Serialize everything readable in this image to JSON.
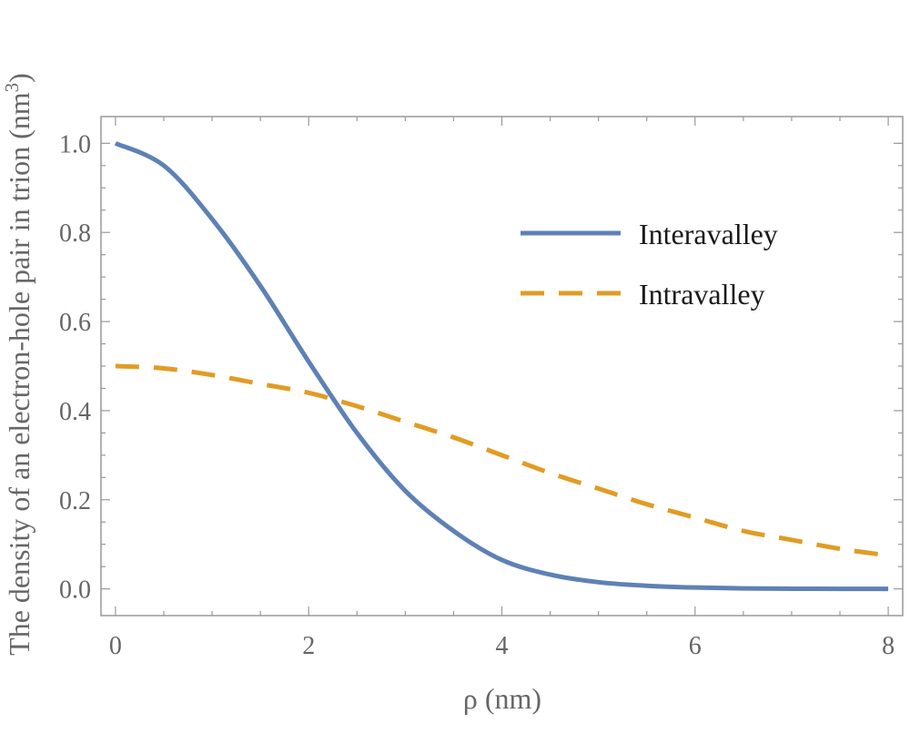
{
  "chart_data": {
    "type": "line",
    "title": "",
    "xlabel": "ρ (nm)",
    "ylabel": "The density of an electron-hole pair in trion (nm",
    "ylabel_superscript": "3",
    "ylabel_close": ")",
    "xlim": [
      -0.15,
      8.15
    ],
    "ylim": [
      -0.06,
      1.06
    ],
    "xticks": [
      0,
      2,
      4,
      6,
      8
    ],
    "xtick_labels": [
      "0",
      "2",
      "4",
      "6",
      "8"
    ],
    "xminor": [
      0.5,
      1,
      1.5,
      2.5,
      3,
      3.5,
      4.5,
      5,
      5.5,
      6.5,
      7,
      7.5
    ],
    "yticks": [
      0.0,
      0.2,
      0.4,
      0.6,
      0.8,
      1.0
    ],
    "ytick_labels": [
      "0.0",
      "0.2",
      "0.4",
      "0.6",
      "0.8",
      "1.0"
    ],
    "yminor": [
      0.05,
      0.1,
      0.15,
      0.25,
      0.3,
      0.35,
      0.45,
      0.5,
      0.55,
      0.65,
      0.7,
      0.75,
      0.85,
      0.9,
      0.95
    ],
    "grid": false,
    "legend_position": "top-right",
    "x": [
      0,
      0.5,
      1,
      1.5,
      2,
      2.5,
      3,
      3.5,
      4,
      4.5,
      5,
      5.5,
      6,
      6.5,
      7,
      7.5,
      8
    ],
    "series": [
      {
        "name": "Interavalley",
        "style": "solid",
        "color": "#5e81b5",
        "values": [
          1.0,
          0.95,
          0.83,
          0.68,
          0.51,
          0.35,
          0.22,
          0.13,
          0.065,
          0.032,
          0.015,
          0.007,
          0.003,
          0.001,
          0.0004,
          0.0001,
          0.0
        ]
      },
      {
        "name": "Intravalley",
        "style": "dashed",
        "color": "#e19c24",
        "values": [
          0.5,
          0.495,
          0.48,
          0.46,
          0.44,
          0.41,
          0.375,
          0.34,
          0.3,
          0.26,
          0.225,
          0.19,
          0.16,
          0.13,
          0.11,
          0.09,
          0.075
        ]
      }
    ]
  }
}
